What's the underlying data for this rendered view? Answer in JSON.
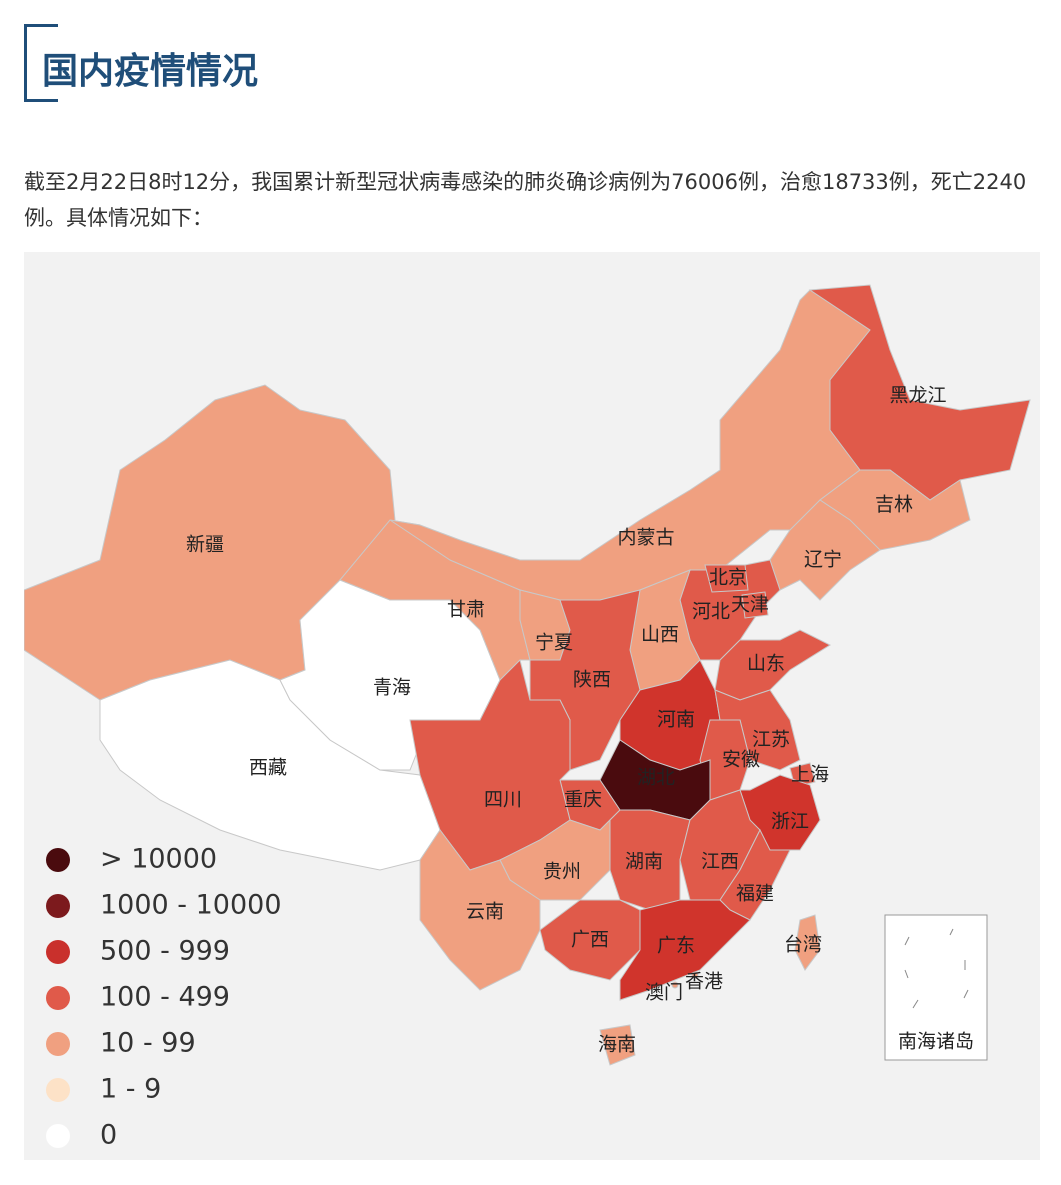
{
  "header": {
    "title": "国内疫情情况"
  },
  "intro": "截至2月22日8时12分，我国累计新型冠状病毒感染的肺炎确诊病例为76006例，治愈18733例，死亡2240例。具体情况如下：",
  "map": {
    "regions": [
      {
        "name": "新疆",
        "color": "#f0a080"
      },
      {
        "name": "西藏",
        "color": "#ffffff"
      },
      {
        "name": "青海",
        "color": "#ffffff"
      },
      {
        "name": "甘肃",
        "color": "#f0a080"
      },
      {
        "name": "内蒙古",
        "color": "#f0a080"
      },
      {
        "name": "黑龙江",
        "color": "#e05a4a"
      },
      {
        "name": "吉林",
        "color": "#f0a080"
      },
      {
        "name": "辽宁",
        "color": "#f0a080"
      },
      {
        "name": "河北",
        "color": "#e05a4a"
      },
      {
        "name": "北京",
        "color": "#e05a4a"
      },
      {
        "name": "天津",
        "color": "#e05a4a"
      },
      {
        "name": "山西",
        "color": "#f0a080"
      },
      {
        "name": "山东",
        "color": "#e05a4a"
      },
      {
        "name": "宁夏",
        "color": "#f0a080"
      },
      {
        "name": "陕西",
        "color": "#e05a4a"
      },
      {
        "name": "河南",
        "color": "#d0342c"
      },
      {
        "name": "江苏",
        "color": "#e05a4a"
      },
      {
        "name": "安徽",
        "color": "#e05a4a"
      },
      {
        "name": "上海",
        "color": "#e05a4a"
      },
      {
        "name": "浙江",
        "color": "#d0342c"
      },
      {
        "name": "湖北",
        "color": "#4a0b0e"
      },
      {
        "name": "重庆",
        "color": "#e05a4a"
      },
      {
        "name": "四川",
        "color": "#e05a4a"
      },
      {
        "name": "贵州",
        "color": "#f0a080"
      },
      {
        "name": "云南",
        "color": "#f0a080"
      },
      {
        "name": "湖南",
        "color": "#e05a4a"
      },
      {
        "name": "江西",
        "color": "#e05a4a"
      },
      {
        "name": "福建",
        "color": "#e05a4a"
      },
      {
        "name": "广西",
        "color": "#e05a4a"
      },
      {
        "name": "广东",
        "color": "#d0342c"
      },
      {
        "name": "海南",
        "color": "#f0a080"
      },
      {
        "name": "台湾",
        "color": "#f0a080"
      },
      {
        "name": "香港",
        "color": "#f0a080"
      },
      {
        "name": "澳门",
        "color": "#f0a080"
      }
    ],
    "inset_label": "南海诸岛",
    "legend": [
      {
        "label": "> 10000",
        "color": "#4a0b0e"
      },
      {
        "label": "1000 - 10000",
        "color": "#7c1a1d"
      },
      {
        "label": "500 - 999",
        "color": "#c9302c"
      },
      {
        "label": "100 - 499",
        "color": "#e05a4a"
      },
      {
        "label": "10 - 99",
        "color": "#f0a080"
      },
      {
        "label": "1 - 9",
        "color": "#fde2c7"
      },
      {
        "label": "0",
        "color": "#ffffff"
      }
    ]
  }
}
